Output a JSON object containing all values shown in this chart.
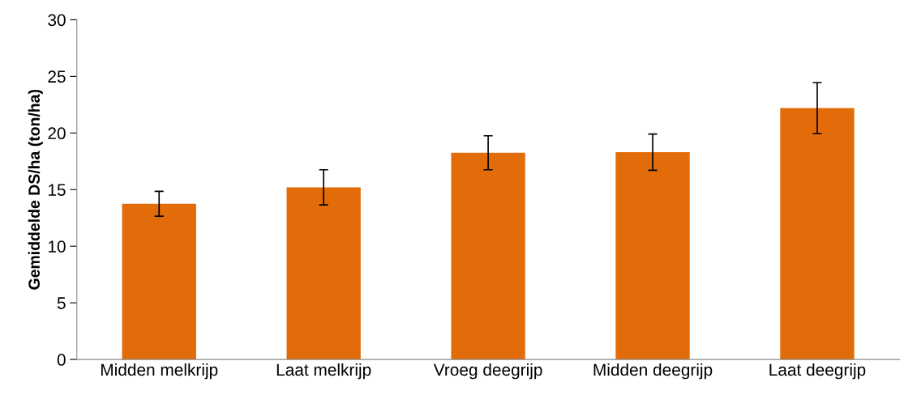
{
  "chart_data": {
    "type": "bar",
    "ylabel": "Gemiddelde DS/ha (ton/ha)",
    "categories": [
      "Midden melkrijp",
      "Laat melkrijp",
      "Vroeg deegrijp",
      "Midden deegrijp",
      "Laat deegrijp"
    ],
    "values": [
      13.75,
      15.2,
      18.25,
      18.3,
      22.2
    ],
    "errors": [
      1.1,
      1.55,
      1.5,
      1.6,
      2.25
    ],
    "color": "#e36c0a",
    "ylim": [
      0,
      30
    ],
    "yticks": [
      0,
      5,
      10,
      15,
      20,
      25,
      30
    ],
    "grid": false
  }
}
